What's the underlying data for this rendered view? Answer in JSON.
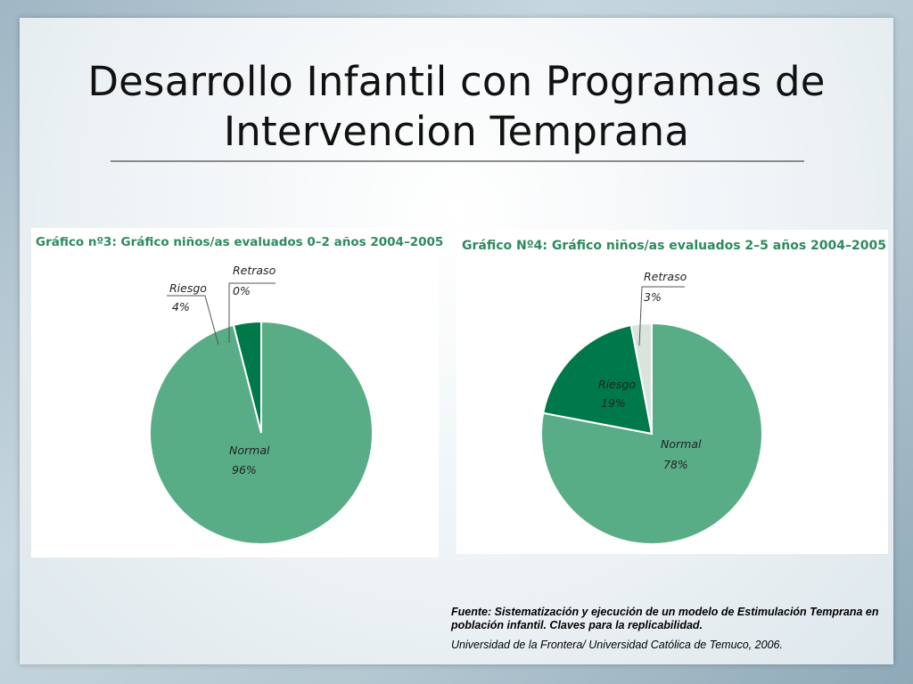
{
  "slide": {
    "title_line1": "Desarrollo Infantil con Programas de",
    "title_line2": "Intervencion Temprana",
    "source_bold": "Fuente: Sistematización y ejecución de un modelo de Estimulación Temprana en población infantil. Claves para la replicabilidad.",
    "source_institution": "Universidad de la Frontera/ Universidad Católica de Temuco, 2006."
  },
  "colors": {
    "normal": "#58ad87",
    "riesgo": "#00794a",
    "retraso": "#d9e4dd",
    "title_green": "#2e8a5e"
  },
  "chart_data": [
    {
      "type": "pie",
      "title": "Gráfico nº3: Gráfico niños/as evaluados 0–2 años 2004–2005",
      "slices": [
        {
          "label": "Normal",
          "value": 96,
          "value_label": "96%"
        },
        {
          "label": "Riesgo",
          "value": 4,
          "value_label": "4%"
        },
        {
          "label": "Retraso",
          "value": 0,
          "value_label": "0%"
        }
      ]
    },
    {
      "type": "pie",
      "title": "Gráfico Nº4: Gráfico niños/as evaluados 2–5 años 2004–2005",
      "slices": [
        {
          "label": "Normal",
          "value": 78,
          "value_label": "78%"
        },
        {
          "label": "Riesgo",
          "value": 19,
          "value_label": "19%"
        },
        {
          "label": "Retraso",
          "value": 3,
          "value_label": "3%"
        }
      ]
    }
  ]
}
